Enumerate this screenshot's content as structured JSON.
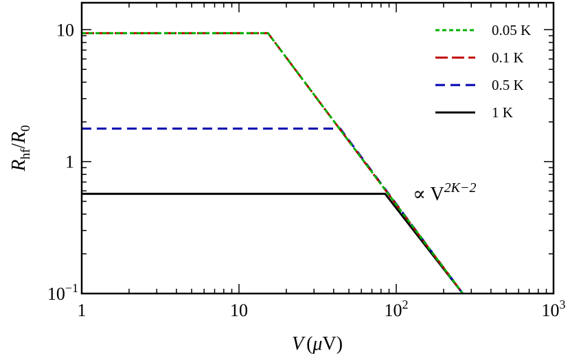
{
  "chart_data": {
    "type": "line",
    "x_scale": "log",
    "y_scale": "log",
    "xlim": [
      1,
      1000
    ],
    "ylim": [
      0.1,
      16
    ],
    "x_ticks": [
      {
        "value": 1,
        "base": "1",
        "exp": ""
      },
      {
        "value": 10,
        "base": "10",
        "exp": ""
      },
      {
        "value": 100,
        "base": "10",
        "exp": "2"
      },
      {
        "value": 1000,
        "base": "10",
        "exp": "3"
      }
    ],
    "y_ticks": [
      {
        "value": 0.1,
        "base": "10",
        "exp": "−1"
      },
      {
        "value": 1,
        "base": "1",
        "exp": ""
      },
      {
        "value": 10,
        "base": "10",
        "exp": ""
      }
    ],
    "xlabel": {
      "var": "V",
      "open": "(",
      "unit_greek": "μ",
      "unit": "V",
      "close": ")"
    },
    "ylabel": {
      "num": "R",
      "num_sub": "hf",
      "slash": "/",
      "den": "R",
      "den_sub": "0"
    },
    "grid": false,
    "legend_position": "top-right",
    "series": [
      {
        "name": "0.05 K",
        "color": "#00b000",
        "dash": "dotted",
        "x": [
          1,
          15.3,
          265
        ],
        "y": [
          9.4,
          9.4,
          0.1
        ]
      },
      {
        "name": "0.1 K",
        "color": "#c00000",
        "dash": "long-dash",
        "x": [
          1,
          15.3,
          265
        ],
        "y": [
          9.4,
          9.4,
          0.1
        ]
      },
      {
        "name": "0.5 K",
        "color": "#0000b0",
        "dash": "dashed",
        "x": [
          1,
          44,
          265
        ],
        "y": [
          1.78,
          1.78,
          0.1
        ]
      },
      {
        "name": "1 K",
        "color": "#000000",
        "dash": "solid",
        "x": [
          1,
          85,
          265
        ],
        "y": [
          0.57,
          0.57,
          0.1
        ]
      }
    ],
    "annotation": {
      "prefix": "∝ V",
      "exp": "2K−2"
    }
  }
}
